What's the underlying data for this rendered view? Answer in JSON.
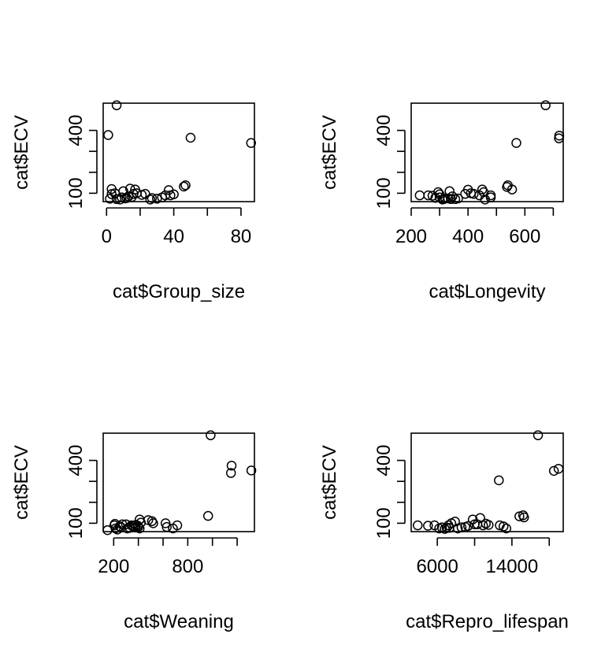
{
  "chart_data": [
    {
      "type": "scatter",
      "xlabel": "cat$Group_size",
      "ylabel": "cat$ECV",
      "xlim": [
        -2,
        88
      ],
      "ylim": [
        60,
        530
      ],
      "xticks": [
        0,
        20,
        40,
        60,
        80
      ],
      "xtick_labels": [
        "0",
        "",
        "40",
        "",
        "80"
      ],
      "yticks": [
        100,
        200,
        300,
        400
      ],
      "ytick_labels": [
        "100",
        "",
        "",
        "400"
      ],
      "x": [
        6,
        1,
        50,
        86,
        47,
        46,
        37,
        3,
        3,
        10,
        14,
        17,
        16,
        18,
        21,
        23,
        27,
        33,
        40,
        38,
        2,
        6,
        8,
        11,
        12,
        15,
        26,
        30,
        35,
        5,
        9,
        13
      ],
      "y": [
        520,
        378,
        365,
        340,
        138,
        132,
        115,
        120,
        96,
        110,
        122,
        118,
        97,
        100,
        92,
        97,
        77,
        80,
        95,
        90,
        74,
        72,
        70,
        75,
        77,
        82,
        70,
        74,
        90,
        100,
        80,
        85
      ]
    },
    {
      "type": "scatter",
      "xlabel": "cat$Longevity",
      "ylabel": "cat$ECV",
      "xlim": [
        200,
        735
      ],
      "ylim": [
        60,
        530
      ],
      "xticks": [
        200,
        300,
        400,
        500,
        600,
        700
      ],
      "xtick_labels": [
        "200",
        "",
        "400",
        "",
        "600",
        ""
      ],
      "yticks": [
        100,
        200,
        300,
        400
      ],
      "ytick_labels": [
        "100",
        "",
        "",
        "400"
      ],
      "x": [
        673,
        721,
        720,
        570,
        540,
        537,
        555,
        230,
        260,
        275,
        285,
        300,
        295,
        315,
        330,
        355,
        365,
        390,
        400,
        420,
        440,
        450,
        455,
        480,
        480,
        460,
        335,
        340,
        345,
        300,
        310,
        320,
        410
      ],
      "y": [
        520,
        375,
        362,
        340,
        138,
        130,
        118,
        90,
        90,
        88,
        78,
        95,
        105,
        72,
        75,
        72,
        75,
        97,
        117,
        97,
        90,
        118,
        105,
        90,
        80,
        70,
        110,
        72,
        85,
        80,
        70,
        75,
        100
      ]
    },
    {
      "type": "scatter",
      "xlabel": "cat$Weaning",
      "ylabel": "cat$ECV",
      "xlim": [
        115,
        1340
      ],
      "ylim": [
        60,
        530
      ],
      "xticks": [
        200,
        400,
        600,
        800,
        1000,
        1200
      ],
      "xtick_labels": [
        "200",
        "",
        "",
        "800",
        "",
        ""
      ],
      "yticks": [
        100,
        200,
        300,
        400
      ],
      "ytick_labels": [
        "100",
        "",
        "",
        "400"
      ],
      "x": [
        985,
        1155,
        1150,
        1315,
        965,
        480,
        510,
        520,
        410,
        420,
        205,
        210,
        250,
        270,
        300,
        330,
        350,
        360,
        380,
        400,
        410,
        620,
        630,
        680,
        715,
        150,
        230,
        260,
        310,
        345,
        395,
        215,
        375
      ],
      "y": [
        520,
        375,
        340,
        352,
        135,
        115,
        110,
        100,
        118,
        103,
        90,
        97,
        85,
        95,
        95,
        78,
        87,
        85,
        92,
        83,
        75,
        100,
        82,
        75,
        90,
        67,
        70,
        80,
        75,
        90,
        88,
        75,
        80
      ],
      "note": ""
    },
    {
      "type": "scatter",
      "xlabel": "cat$Repro_lifespan",
      "ylabel": "cat$ECV",
      "xlim": [
        3200,
        19500
      ],
      "ylim": [
        60,
        530
      ],
      "xticks": [
        6000,
        10000,
        14000,
        18000
      ],
      "xtick_labels": [
        "6000",
        "",
        "14000",
        ""
      ],
      "yticks": [
        100,
        200,
        300,
        400
      ],
      "ytick_labels": [
        "100",
        "",
        "",
        "400"
      ],
      "x": [
        16800,
        19000,
        18500,
        12600,
        14800,
        15200,
        15300,
        3900,
        5000,
        5700,
        6200,
        6500,
        7000,
        7200,
        7500,
        7900,
        8200,
        9000,
        9300,
        9800,
        10300,
        10600,
        10900,
        11200,
        12700,
        13100,
        13400,
        6800,
        7300,
        8600,
        10000,
        11500
      ],
      "y": [
        520,
        360,
        350,
        305,
        133,
        138,
        128,
        90,
        88,
        90,
        75,
        80,
        78,
        90,
        100,
        108,
        75,
        82,
        87,
        118,
        95,
        125,
        90,
        98,
        90,
        85,
        75,
        73,
        78,
        80,
        95,
        92
      ]
    }
  ]
}
